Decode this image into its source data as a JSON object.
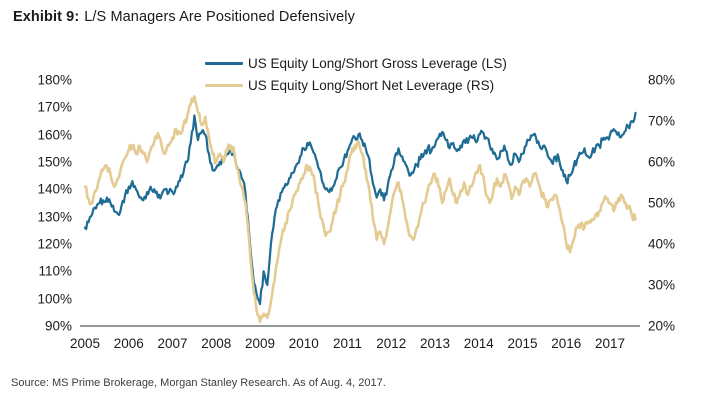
{
  "title": {
    "prefix": "Exhibit 9:",
    "text": "L/S Managers Are Positioned Defensively"
  },
  "source": "Source: MS Prime Brokerage, Morgan Stanley Research. As of Aug. 4, 2017.",
  "colors": {
    "gross_line": "#1E6B93",
    "net_line": "#E4CB92",
    "axis_line": "#58595B",
    "text": "#1C1C1C"
  },
  "chart_data": {
    "type": "line",
    "title": "L/S Managers Are Positioned Defensively",
    "x_unit": "month",
    "x_start": "2005-01",
    "x_end": "2017-08",
    "x_tick_labels": [
      "2005",
      "2006",
      "2007",
      "2008",
      "2009",
      "2010",
      "2011",
      "2012",
      "2013",
      "2014",
      "2015",
      "2016",
      "2017"
    ],
    "grid": false,
    "legend_position": "top-center",
    "left_axis": {
      "min": 90,
      "max": 180,
      "ticks": [
        "180%",
        "170%",
        "160%",
        "150%",
        "140%",
        "130%",
        "120%",
        "110%",
        "100%",
        "90%"
      ]
    },
    "right_axis": {
      "min": 20,
      "max": 80,
      "ticks": [
        "80%",
        "70%",
        "60%",
        "50%",
        "40%",
        "30%",
        "20%"
      ]
    },
    "series": [
      {
        "name": "US Equity Long/Short Gross Leverage (LS)",
        "axis": "left",
        "color": "#1E6B93",
        "values": [
          126,
          128,
          131,
          133,
          135,
          136,
          137,
          135,
          132,
          131,
          134,
          138,
          141,
          143,
          140,
          137,
          136,
          139,
          141,
          140,
          137,
          138,
          140,
          139,
          139,
          141,
          143,
          146,
          150,
          157,
          167,
          158,
          161,
          160,
          153,
          147,
          148,
          150,
          151,
          153,
          155,
          152,
          147,
          144,
          139,
          124,
          110,
          102,
          98,
          110,
          105,
          120,
          130,
          136,
          139,
          142,
          144,
          146,
          149,
          152,
          155,
          157,
          156,
          153,
          148,
          143,
          140,
          139,
          141,
          144,
          148,
          151,
          154,
          157,
          159,
          160,
          158,
          155,
          151,
          142,
          137,
          140,
          136,
          141,
          147,
          152,
          155,
          152,
          149,
          145,
          146,
          149,
          151,
          153,
          155,
          154,
          156,
          159,
          161,
          158,
          155,
          157,
          154,
          156,
          158,
          157,
          159,
          158,
          160,
          161,
          159,
          156,
          153,
          151,
          154,
          156,
          151,
          149,
          153,
          150,
          153,
          156,
          158,
          160,
          157,
          155,
          156,
          152,
          150,
          152,
          151,
          147,
          143,
          145,
          148,
          151,
          153,
          155,
          152,
          153,
          155,
          156,
          158,
          159,
          160,
          162,
          160,
          159,
          161,
          163,
          165,
          168
        ]
      },
      {
        "name": "US Equity Long/Short Net Leverage (RS)",
        "axis": "right",
        "color": "#E4CB92",
        "values": [
          54,
          51,
          50,
          53,
          56,
          58,
          59,
          57,
          54,
          56,
          59,
          61,
          63,
          64,
          62,
          64,
          62,
          60,
          63,
          65,
          67,
          64,
          62,
          64,
          66,
          68,
          67,
          69,
          71,
          74,
          76,
          72,
          69,
          71,
          66,
          62,
          60,
          62,
          60,
          63,
          64,
          62,
          58,
          54,
          50,
          41,
          31,
          24,
          21,
          23,
          22,
          26,
          31,
          37,
          42,
          45,
          48,
          51,
          53,
          55,
          57,
          59,
          58,
          55,
          50,
          46,
          42,
          43,
          46,
          49,
          52,
          55,
          58,
          62,
          64,
          65,
          62,
          58,
          53,
          46,
          41,
          43,
          40,
          44,
          49,
          53,
          55,
          51,
          46,
          42,
          41,
          44,
          47,
          50,
          53,
          55,
          57,
          54,
          50,
          53,
          56,
          52,
          50,
          53,
          55,
          52,
          54,
          57,
          59,
          57,
          52,
          50,
          53,
          56,
          54,
          57,
          55,
          51,
          54,
          52,
          55,
          56,
          54,
          57,
          56,
          53,
          51,
          49,
          51,
          52,
          49,
          45,
          40,
          38,
          41,
          44,
          45,
          44,
          45,
          46,
          47,
          48,
          50,
          51,
          50,
          48,
          50,
          52,
          50,
          49,
          47,
          46
        ]
      }
    ]
  }
}
